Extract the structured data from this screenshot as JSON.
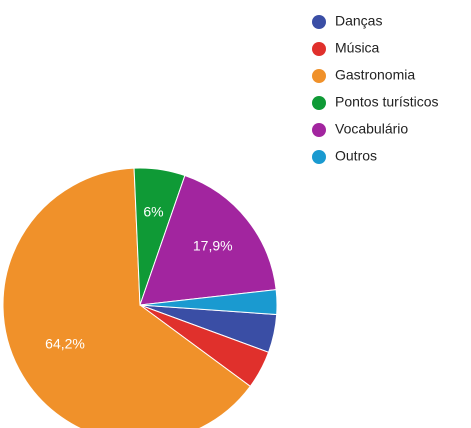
{
  "chart_data": {
    "type": "pie",
    "categories": [
      "Danças",
      "Música",
      "Gastronomia",
      "Pontos turísticos",
      "Vocabulário",
      "Outros"
    ],
    "values": [
      4.5,
      4.5,
      64.2,
      6,
      17.9,
      2.9
    ],
    "value_labels": [
      null,
      null,
      "64,2%",
      "6%",
      "17,9%",
      null
    ],
    "colors": [
      "#3a4ea5",
      "#e0302c",
      "#f0912a",
      "#0f9a36",
      "#a2259f",
      "#1a9ad0"
    ],
    "legend": "right"
  }
}
